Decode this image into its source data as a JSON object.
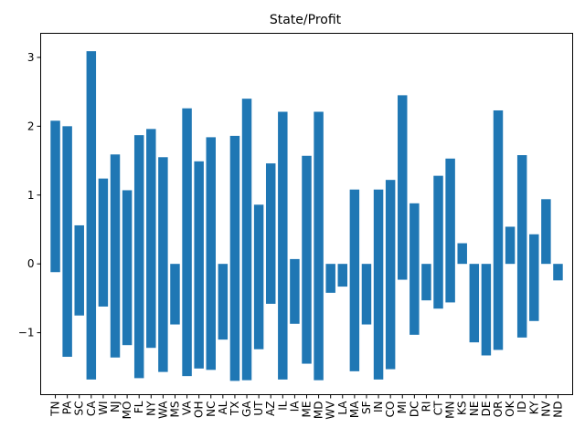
{
  "chart_data": {
    "type": "bar",
    "title": "State/Profit",
    "xlabel": "",
    "ylabel": "",
    "categories": [
      "TN",
      "PA",
      "SC",
      "CA",
      "WI",
      "NJ",
      "MO",
      "FL",
      "NY",
      "WA",
      "MS",
      "VA",
      "OH",
      "NC",
      "AL",
      "TX",
      "GA",
      "UT",
      "AZ",
      "IL",
      "IA",
      "ME",
      "MD",
      "WV",
      "LA",
      "MA",
      "SF",
      "IN",
      "CO",
      "MI",
      "DC",
      "RI",
      "CT",
      "MN",
      "KS",
      "NE",
      "DE",
      "OR",
      "OK",
      "ID",
      "KY",
      "NV",
      "ND"
    ],
    "bottoms": [
      -0.12,
      -1.35,
      -0.75,
      -1.68,
      -0.62,
      -1.36,
      -1.18,
      -1.66,
      -1.22,
      -1.57,
      -0.88,
      -1.63,
      -1.52,
      -1.54,
      -1.1,
      -1.7,
      -1.69,
      -1.24,
      -0.58,
      -1.68,
      -0.87,
      -1.45,
      -1.69,
      -0.42,
      -0.33,
      -1.56,
      -0.88,
      -1.68,
      -1.53,
      -0.23,
      -1.03,
      -0.53,
      -0.65,
      -0.56,
      0.0,
      -1.14,
      -1.33,
      -1.25,
      0.0,
      -1.07,
      -0.83,
      0.0,
      -0.24
    ],
    "tops": [
      2.08,
      2.0,
      0.56,
      3.09,
      1.24,
      1.59,
      1.07,
      1.87,
      1.96,
      1.55,
      0.0,
      2.26,
      1.49,
      1.84,
      0.0,
      1.86,
      2.4,
      0.86,
      1.46,
      2.21,
      0.07,
      1.57,
      2.21,
      0.0,
      0.0,
      1.08,
      0.0,
      1.08,
      1.22,
      2.45,
      0.88,
      0.0,
      1.28,
      1.53,
      0.3,
      0.0,
      0.0,
      2.23,
      0.54,
      1.58,
      0.43,
      0.94,
      0.0
    ],
    "ylim": [
      -1.9,
      3.35
    ],
    "yticks": [
      -1,
      0,
      1,
      2,
      3
    ],
    "ytick_labels": [
      "−1",
      "0",
      "1",
      "2",
      "3"
    ],
    "grid": false,
    "bar_color": "#1f77b4"
  }
}
